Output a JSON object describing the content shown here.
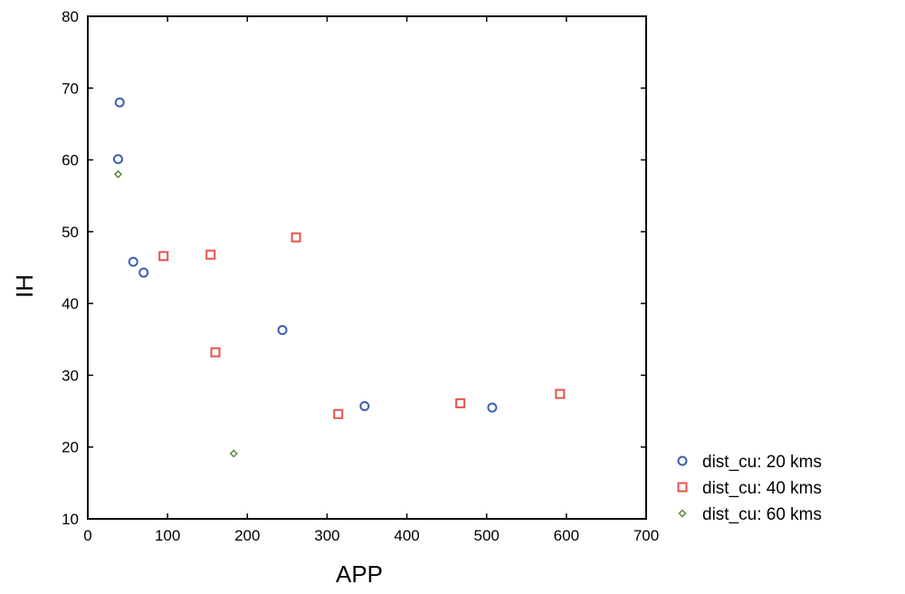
{
  "chart_data": {
    "type": "scatter",
    "xlabel": "APP",
    "ylabel": "IH",
    "xlim": [
      0,
      700
    ],
    "ylim": [
      10,
      80
    ],
    "xticks": [
      0,
      100,
      200,
      300,
      400,
      500,
      600,
      700
    ],
    "yticks": [
      10,
      20,
      30,
      40,
      50,
      60,
      70,
      80
    ],
    "xtick_labels": [
      "0",
      "100",
      "200",
      "300",
      "400",
      "500",
      "600",
      "700"
    ],
    "ytick_labels": [
      "10",
      "20",
      "30",
      "40",
      "50",
      "60",
      "70",
      "80"
    ],
    "grid": false,
    "legend_position": "right-bottom outside",
    "series": [
      {
        "name": "dist_cu: 20 kms",
        "marker": "circle",
        "color": "#3b5fb0",
        "points": [
          {
            "x": 40,
            "y": 68.0
          },
          {
            "x": 38,
            "y": 60.1
          },
          {
            "x": 57,
            "y": 45.8
          },
          {
            "x": 70,
            "y": 44.3
          },
          {
            "x": 244,
            "y": 36.3
          },
          {
            "x": 347,
            "y": 25.7
          },
          {
            "x": 507,
            "y": 25.5
          }
        ]
      },
      {
        "name": "dist_cu: 40 kms",
        "marker": "square",
        "color": "#e8524a",
        "points": [
          {
            "x": 95,
            "y": 46.6
          },
          {
            "x": 154,
            "y": 46.8
          },
          {
            "x": 160,
            "y": 33.2
          },
          {
            "x": 261,
            "y": 49.2
          },
          {
            "x": 314,
            "y": 24.6
          },
          {
            "x": 467,
            "y": 26.1
          },
          {
            "x": 592,
            "y": 27.4
          }
        ]
      },
      {
        "name": "dist_cu: 60 kms",
        "marker": "diamond",
        "color": "#5a8a3c",
        "points": [
          {
            "x": 38,
            "y": 58.0
          },
          {
            "x": 183,
            "y": 19.1
          }
        ]
      }
    ]
  }
}
